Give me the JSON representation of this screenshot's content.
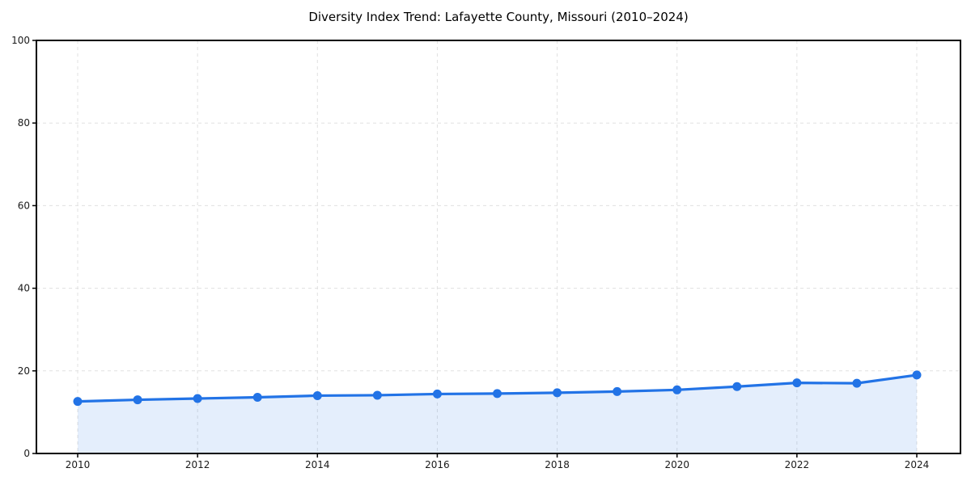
{
  "chart_data": {
    "type": "area",
    "title": "Diversity Index Trend: Lafayette County, Missouri (2010–2024)",
    "x": [
      2010,
      2011,
      2012,
      2013,
      2014,
      2015,
      2016,
      2017,
      2018,
      2019,
      2020,
      2021,
      2022,
      2023,
      2024
    ],
    "series": [
      {
        "name": "Diversity Index",
        "values": [
          12.6,
          13.0,
          13.3,
          13.6,
          14.0,
          14.1,
          14.4,
          14.5,
          14.7,
          15.0,
          15.4,
          16.2,
          17.1,
          17.0,
          19.0
        ]
      }
    ],
    "xlabel": "",
    "ylabel": "",
    "xticks": [
      2010,
      2012,
      2014,
      2016,
      2018,
      2020,
      2022,
      2024
    ],
    "yticks": [
      0,
      20,
      40,
      60,
      80,
      100
    ],
    "ylim": [
      0,
      100
    ],
    "grid": true,
    "grid_style": "dashed",
    "legend_position": "none",
    "colors": {
      "line": "#2273e6",
      "marker": "#2273e6",
      "area_fill": "rgba(34, 115, 230, 0.12)",
      "grid": "#e0e0e0",
      "spine": "#000000",
      "tick_label": "#1a1a1a",
      "title": "#000000",
      "background": "#ffffff"
    }
  }
}
